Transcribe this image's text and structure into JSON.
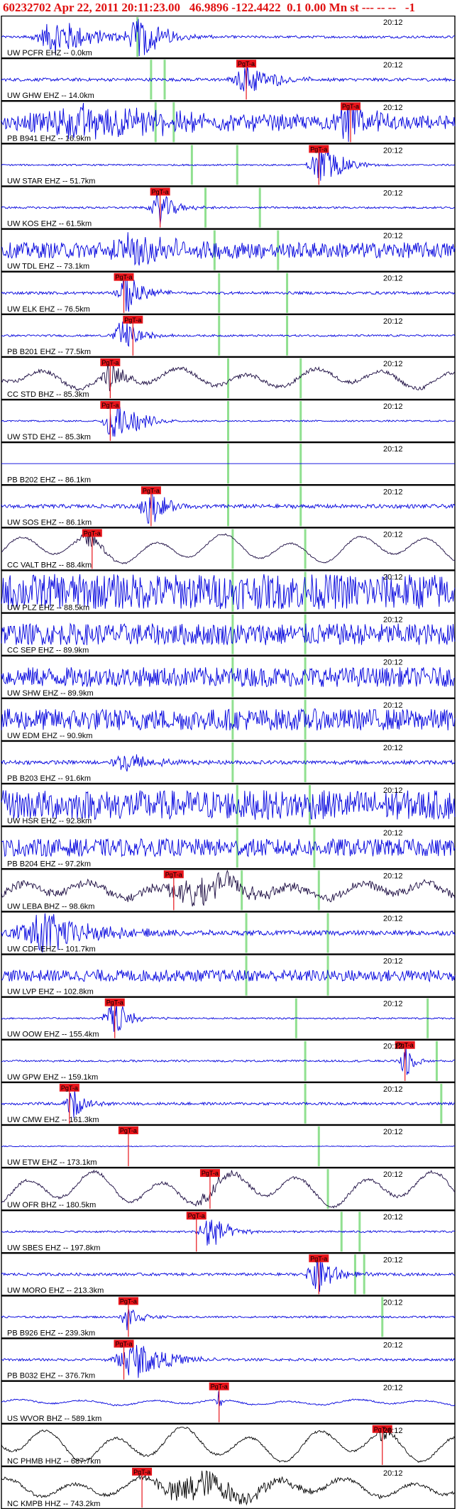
{
  "header": {
    "event_id": "60232702",
    "datetime": "Apr 22, 2011 20:11:23.00",
    "lat": "46.9896",
    "lon": "-122.4422",
    "depth": "0.1",
    "magnitude": "0.00",
    "mag_type": "Mn",
    "flags": "st --- -- --",
    "code": "-1"
  },
  "chart_data": {
    "type": "line",
    "title": "60232702 Apr 22, 2011 20:11:23.00 46.9896 -122.4422 0.1 0.00 Mn st --- -- -- -1",
    "time_label": "20:12",
    "pick_label": "PgT-a",
    "colors": {
      "trace": "#0000dd",
      "broadband": "#1a0a40",
      "longperiod": "#000000",
      "pick_line": "#e8141a",
      "pick_box": "#e8141a",
      "green_marker": "#90e090",
      "frame": "#000000"
    },
    "traces": [
      {
        "label": "UW PCFR EHZ -- 0.0km",
        "pick": null,
        "green": [
          0.3
        ],
        "noise": 0.06,
        "bursts": [
          [
            0.13,
            0.09,
            0.7
          ],
          [
            0.31,
            0.06,
            0.8
          ]
        ],
        "color": "trace",
        "drift": 0
      },
      {
        "label": "UW GHW EHZ -- 14.0km",
        "pick": 0.54,
        "green": [
          0.33,
          0.36
        ],
        "noise": 0.08,
        "bursts": [
          [
            0.55,
            0.06,
            0.6
          ]
        ],
        "color": "trace",
        "drift": 0
      },
      {
        "label": "PB B941 EHZ -- 16.9km",
        "pick": 0.77,
        "green": [
          0.34,
          0.38
        ],
        "noise": 0.35,
        "bursts": [
          [
            0.2,
            0.25,
            0.6
          ],
          [
            0.77,
            0.05,
            0.9
          ]
        ],
        "color": "trace",
        "drift": 0
      },
      {
        "label": "UW STAR EHZ -- 51.7km",
        "pick": 0.7,
        "green": [
          0.42,
          0.52
        ],
        "noise": 0.04,
        "bursts": [
          [
            0.71,
            0.05,
            0.8
          ]
        ],
        "color": "trace",
        "drift": 0
      },
      {
        "label": "UW KOS EHZ -- 61.5km",
        "pick": 0.35,
        "green": [
          0.45,
          0.57
        ],
        "noise": 0.05,
        "bursts": [
          [
            0.35,
            0.04,
            0.6
          ]
        ],
        "color": "trace",
        "drift": 0
      },
      {
        "label": "UW TDL EHZ -- 73.1km",
        "pick": null,
        "green": [
          0.47,
          0.61
        ],
        "noise": 0.4,
        "bursts": [
          [
            0.3,
            0.1,
            0.6
          ]
        ],
        "color": "trace",
        "drift": 0
      },
      {
        "label": "UW ELK EHZ -- 76.5km",
        "pick": 0.27,
        "green": [
          0.48,
          0.63
        ],
        "noise": 0.07,
        "bursts": [
          [
            0.28,
            0.04,
            0.8
          ]
        ],
        "color": "trace",
        "drift": 0
      },
      {
        "label": "PB B201 EHZ -- 77.5km",
        "pick": 0.29,
        "green": [
          0.48,
          0.63
        ],
        "noise": 0.05,
        "bursts": [
          [
            0.27,
            0.04,
            0.6
          ]
        ],
        "color": "trace",
        "drift": 0
      },
      {
        "label": "CC STD BHZ -- 85.3km",
        "pick": 0.24,
        "green": [
          0.5,
          0.66
        ],
        "noise": 0.1,
        "bursts": [
          [
            0.24,
            0.03,
            0.6
          ]
        ],
        "color": "broadband",
        "drift": 0.35
      },
      {
        "label": "UW STD EHZ -- 85.3km",
        "pick": 0.24,
        "green": [
          0.5,
          0.66
        ],
        "noise": 0.04,
        "bursts": [
          [
            0.25,
            0.04,
            0.8
          ],
          [
            0.3,
            0.05,
            0.3
          ]
        ],
        "color": "trace",
        "drift": 0
      },
      {
        "label": "PB B202 EHZ -- 86.1km",
        "pick": null,
        "green": [
          0.5,
          0.66
        ],
        "noise": 0.0,
        "bursts": [],
        "color": "trace",
        "drift": 0
      },
      {
        "label": "UW SOS EHZ -- 86.1km",
        "pick": 0.33,
        "green": [
          0.5,
          0.66
        ],
        "noise": 0.1,
        "bursts": [
          [
            0.33,
            0.04,
            0.7
          ]
        ],
        "color": "trace",
        "drift": 0
      },
      {
        "label": "CC VALT BHZ -- 88.4km",
        "pick": 0.2,
        "green": [
          0.51,
          0.67
        ],
        "noise": 0.04,
        "bursts": [
          [
            0.19,
            0.03,
            0.4
          ]
        ],
        "color": "broadband",
        "drift": 0.5
      },
      {
        "label": "UW PLZ EHZ -- 88.5km",
        "pick": null,
        "green": [
          0.51,
          0.67
        ],
        "noise": 0.9,
        "bursts": [],
        "color": "trace",
        "drift": 0
      },
      {
        "label": "CC SEP EHZ -- 89.9km",
        "pick": null,
        "green": [
          0.51,
          0.67
        ],
        "noise": 0.55,
        "bursts": [],
        "color": "trace",
        "drift": 0
      },
      {
        "label": "UW SHW EHZ -- 89.9km",
        "pick": null,
        "green": [
          0.51,
          0.67
        ],
        "noise": 0.5,
        "bursts": [],
        "color": "trace",
        "drift": 0
      },
      {
        "label": "UW EDM EHZ -- 90.9km",
        "pick": null,
        "green": [
          0.51,
          0.67
        ],
        "noise": 0.55,
        "bursts": [],
        "color": "trace",
        "drift": 0
      },
      {
        "label": "PB B203 EHZ -- 91.6km",
        "pick": null,
        "green": [
          0.51,
          0.67
        ],
        "noise": 0.1,
        "bursts": [
          [
            0.28,
            0.06,
            0.4
          ]
        ],
        "color": "trace",
        "drift": 0
      },
      {
        "label": "UW HSR EHZ -- 92.8km",
        "pick": null,
        "green": [
          0.52,
          0.68
        ],
        "noise": 0.75,
        "bursts": [],
        "color": "trace",
        "drift": 0
      },
      {
        "label": "PB B204 EHZ -- 97.2km",
        "pick": null,
        "green": [
          0.52,
          0.69
        ],
        "noise": 0.45,
        "bursts": [],
        "color": "trace",
        "drift": 0
      },
      {
        "label": "UW LEBA BHZ -- 98.6km",
        "pick": 0.38,
        "green": [
          0.53,
          0.7
        ],
        "noise": 0.2,
        "bursts": [
          [
            0.43,
            0.1,
            0.7
          ]
        ],
        "color": "broadband",
        "drift": 0.3
      },
      {
        "label": "UW CDF EHZ -- 101.7km",
        "pick": null,
        "green": [
          0.54,
          0.72
        ],
        "noise": 0.12,
        "bursts": [
          [
            0.1,
            0.12,
            0.8
          ]
        ],
        "color": "trace",
        "drift": 0
      },
      {
        "label": "UW LVP EHZ -- 102.8km",
        "pick": null,
        "green": [
          0.54,
          0.72
        ],
        "noise": 0.3,
        "bursts": [],
        "color": "trace",
        "drift": 0
      },
      {
        "label": "UW OOW EHZ -- 155.4km",
        "pick": 0.25,
        "green": [
          0.65,
          0.94
        ],
        "noise": 0.04,
        "bursts": [
          [
            0.25,
            0.04,
            0.7
          ]
        ],
        "color": "trace",
        "drift": 0
      },
      {
        "label": "UW GPW EHZ -- 159.1km",
        "pick": 0.89,
        "green": [
          0.67,
          0.96
        ],
        "noise": 0.05,
        "bursts": [
          [
            0.89,
            0.02,
            0.8
          ]
        ],
        "color": "trace",
        "drift": 0
      },
      {
        "label": "UW CMW EHZ -- 161.3km",
        "pick": 0.15,
        "green": [
          0.67,
          0.97
        ],
        "noise": 0.07,
        "bursts": [
          [
            0.16,
            0.03,
            0.6
          ]
        ],
        "color": "trace",
        "drift": 0
      },
      {
        "label": "UW ETW EHZ -- 173.1km",
        "pick": 0.28,
        "green": [
          0.7
        ],
        "noise": 0.02,
        "bursts": [],
        "color": "trace",
        "drift": 0
      },
      {
        "label": "UW OFR BHZ -- 180.5km",
        "pick": 0.46,
        "green": [
          0.72
        ],
        "noise": 0.08,
        "bursts": [
          [
            0.46,
            0.06,
            0.3
          ]
        ],
        "color": "broadband",
        "drift": 0.6
      },
      {
        "label": "UW SBES EHZ -- 197.8km",
        "pick": 0.43,
        "green": [
          0.75,
          0.79
        ],
        "noise": 0.05,
        "bursts": [
          [
            0.46,
            0.04,
            0.8
          ]
        ],
        "color": "trace",
        "drift": 0
      },
      {
        "label": "UW MORO EHZ -- 213.3km",
        "pick": 0.7,
        "green": [
          0.78,
          0.8
        ],
        "noise": 0.07,
        "bursts": [
          [
            0.7,
            0.04,
            0.8
          ]
        ],
        "color": "trace",
        "drift": 0
      },
      {
        "label": "PB B926 EHZ -- 239.3km",
        "pick": 0.28,
        "green": [
          0.84
        ],
        "noise": 0.05,
        "bursts": [
          [
            0.28,
            0.03,
            0.5
          ]
        ],
        "color": "trace",
        "drift": 0
      },
      {
        "label": "PB B032 EHZ -- 376.7km",
        "pick": 0.27,
        "green": [],
        "noise": 0.06,
        "bursts": [
          [
            0.3,
            0.08,
            0.7
          ]
        ],
        "color": "trace",
        "drift": 0
      },
      {
        "label": "US WVOR BHZ -- 589.1km",
        "pick": 0.48,
        "green": [],
        "noise": 0.04,
        "bursts": [
          [
            0.48,
            0.01,
            0.4
          ]
        ],
        "color": "trace",
        "drift": 0.1
      },
      {
        "label": "NC PHMB HHZ -- 687.7km",
        "pick": 0.84,
        "green": [],
        "noise": 0.06,
        "bursts": [
          [
            0.84,
            0.02,
            0.4
          ]
        ],
        "color": "longperiod",
        "drift": 0.6
      },
      {
        "label": "NC KMPB HHZ -- 743.2km",
        "pick": 0.31,
        "green": [],
        "noise": 0.08,
        "bursts": [
          [
            0.43,
            0.15,
            0.6
          ]
        ],
        "color": "longperiod",
        "drift": 0.35
      }
    ]
  }
}
